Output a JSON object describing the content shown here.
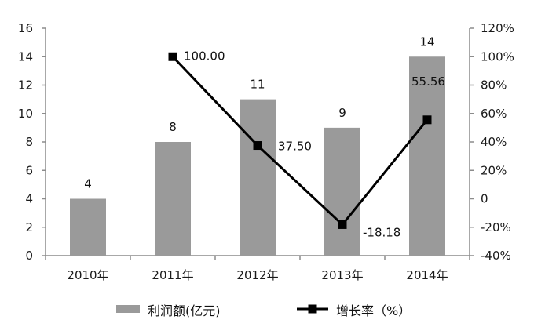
{
  "chart_data": {
    "type": "bar",
    "categories": [
      "2010年",
      "2011年",
      "2012年",
      "2013年",
      "2014年"
    ],
    "series": [
      {
        "name": "利润额(亿元)",
        "kind": "bar",
        "axis": "left",
        "color": "#9a9a9a",
        "values": [
          4,
          8,
          11,
          9,
          14
        ],
        "labels": [
          "4",
          "8",
          "11",
          "9",
          "14"
        ]
      },
      {
        "name": "增长率（%）",
        "kind": "line",
        "axis": "right",
        "color": "#000000",
        "values": [
          null,
          100.0,
          37.5,
          -18.18,
          55.56
        ],
        "labels": [
          "",
          "100.00",
          "37.50",
          "-18.18",
          "55.56"
        ]
      }
    ],
    "y_left": {
      "range": [
        0,
        16
      ],
      "ticks": [
        0,
        2,
        4,
        6,
        8,
        10,
        12,
        14,
        16
      ],
      "tick_labels": [
        "0",
        "2",
        "4",
        "6",
        "8",
        "10",
        "12",
        "14",
        "16"
      ]
    },
    "y_right": {
      "range": [
        -40,
        120
      ],
      "ticks": [
        -40,
        -20,
        0,
        20,
        40,
        60,
        80,
        100,
        120
      ],
      "tick_labels": [
        "-40%",
        "-20%",
        "0",
        "20%",
        "40%",
        "60%",
        "80%",
        "100%",
        "120%"
      ]
    },
    "grid": false,
    "legend_position": "bottom",
    "title": "",
    "xlabel": "",
    "ylabel": ""
  }
}
